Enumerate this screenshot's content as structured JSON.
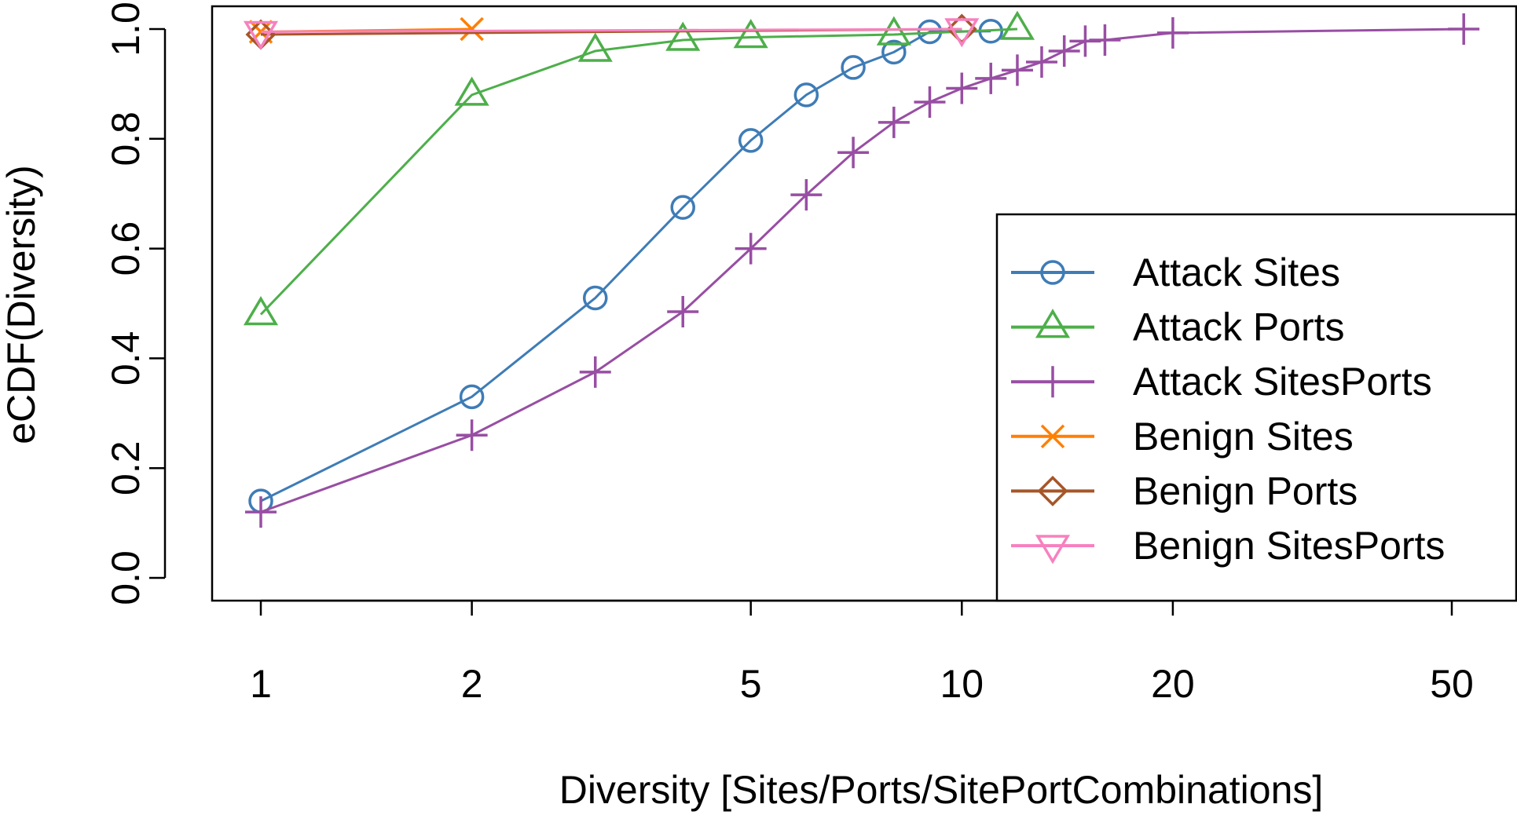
{
  "chart_data": {
    "type": "line",
    "title": "",
    "xlabel": "Diversity [Sites/Ports/SitePortCombinations]",
    "ylabel": "eCDF(Diversity)",
    "x_scale": "log",
    "xlim": [
      0.83,
      63
    ],
    "ylim": [
      -0.04,
      1.04
    ],
    "x_ticks": [
      1,
      2,
      5,
      10,
      20,
      50
    ],
    "x_tick_labels": [
      "1",
      "2",
      "5",
      "10",
      "20",
      "50"
    ],
    "y_ticks": [
      0.0,
      0.2,
      0.4,
      0.6,
      0.8,
      1.0
    ],
    "y_tick_labels": [
      "0.0",
      "0.2",
      "0.4",
      "0.6",
      "0.8",
      "1.0"
    ],
    "grid": false,
    "legend_position": "bottom-right",
    "series": [
      {
        "name": "Attack Sites",
        "color": "#3E7CB6",
        "marker": "circle",
        "x": [
          1,
          2,
          3,
          4,
          5,
          6,
          7,
          8,
          9,
          11
        ],
        "y": [
          0.14,
          0.33,
          0.51,
          0.675,
          0.797,
          0.88,
          0.93,
          0.958,
          0.995,
          0.996
        ]
      },
      {
        "name": "Attack Ports",
        "color": "#4DAF4A",
        "marker": "triangle-up",
        "x": [
          1,
          2,
          3,
          4,
          5,
          8,
          12
        ],
        "y": [
          0.48,
          0.88,
          0.96,
          0.98,
          0.985,
          0.99,
          1.0
        ]
      },
      {
        "name": "Attack SitesPorts",
        "color": "#984EA3",
        "marker": "plus",
        "x": [
          1,
          2,
          3,
          4,
          5,
          6,
          7,
          8,
          9,
          10,
          11,
          12,
          13,
          14,
          15,
          16,
          20,
          52
        ],
        "y": [
          0.12,
          0.26,
          0.375,
          0.485,
          0.6,
          0.698,
          0.775,
          0.83,
          0.867,
          0.892,
          0.91,
          0.925,
          0.94,
          0.96,
          0.978,
          0.98,
          0.993,
          1.0
        ]
      },
      {
        "name": "Benign Sites",
        "color": "#FF7F00",
        "marker": "x",
        "x": [
          1,
          2
        ],
        "y": [
          0.995,
          1.0
        ]
      },
      {
        "name": "Benign Ports",
        "color": "#A65628",
        "marker": "diamond",
        "x": [
          1,
          10
        ],
        "y": [
          0.99,
          1.0
        ]
      },
      {
        "name": "Benign SitesPorts",
        "color": "#F781BF",
        "marker": "triangle-down",
        "x": [
          1,
          10
        ],
        "y": [
          0.995,
          1.0
        ]
      }
    ]
  }
}
